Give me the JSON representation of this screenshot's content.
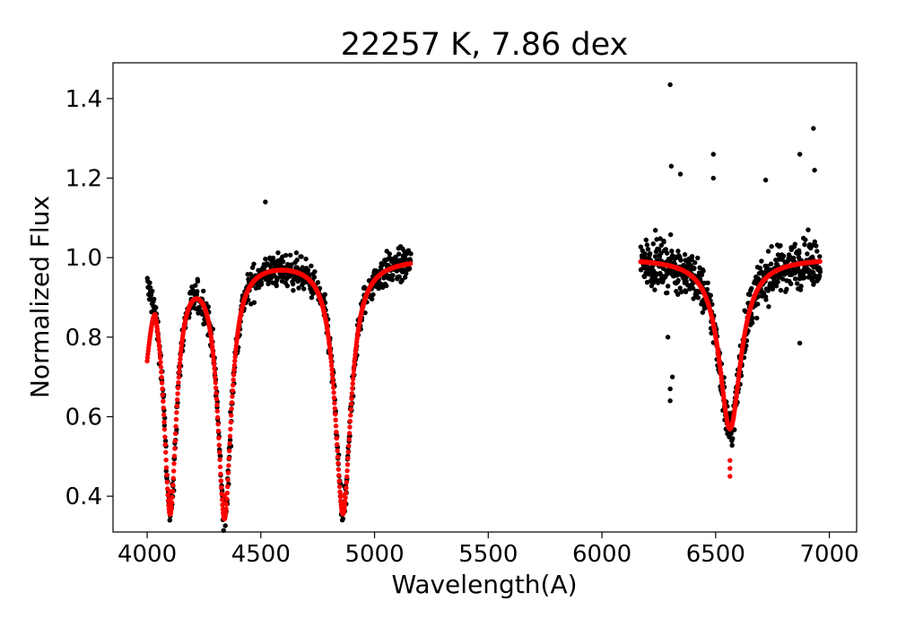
{
  "chart_data": {
    "type": "scatter",
    "title": "22257 K, 7.86 dex",
    "xlabel": "Wavelength(A)",
    "ylabel": "Normalized Flux",
    "xlim": [
      3850,
      7120
    ],
    "ylim": [
      0.31,
      1.49
    ],
    "xticks": [
      "4000",
      "4500",
      "5000",
      "5500",
      "6000",
      "6500",
      "7000"
    ],
    "yticks": [
      "0.4",
      "0.6",
      "0.8",
      "1.0",
      "1.2",
      "1.4"
    ],
    "grid": false,
    "legend": "none",
    "colors": {
      "observed": "#000000",
      "model": "#ff0000"
    },
    "series": [
      {
        "kind": "observed",
        "segments": [
          [
            4000,
            5160
          ],
          [
            6170,
            6960
          ]
        ],
        "continuum": 1.0,
        "noise_sigma": 0.04,
        "notable_points": [
          {
            "x": 6300,
            "y": 1.435
          },
          {
            "x": 6305,
            "y": 1.23
          },
          {
            "x": 6345,
            "y": 1.21
          },
          {
            "x": 6490,
            "y": 1.26
          },
          {
            "x": 6490,
            "y": 1.2
          },
          {
            "x": 6720,
            "y": 1.195
          },
          {
            "x": 6870,
            "y": 1.26
          },
          {
            "x": 6930,
            "y": 1.325
          },
          {
            "x": 6935,
            "y": 1.22
          },
          {
            "x": 4520,
            "y": 1.14
          },
          {
            "x": 6300,
            "y": 0.64
          },
          {
            "x": 6300,
            "y": 0.67
          },
          {
            "x": 6310,
            "y": 0.7
          },
          {
            "x": 6290,
            "y": 0.8
          },
          {
            "x": 6870,
            "y": 0.785
          }
        ]
      },
      {
        "kind": "model",
        "segments": [
          [
            4000,
            5160
          ],
          [
            6170,
            6960
          ]
        ],
        "continuum_start": 0.74,
        "lines": [
          {
            "center": 4101,
            "depth": 0.63,
            "width": 34,
            "core_min": 0.372
          },
          {
            "center": 4340,
            "depth": 0.64,
            "width": 36,
            "core_min": 0.362
          },
          {
            "center": 4861,
            "depth": 0.64,
            "width": 42,
            "core_min": 0.362
          },
          {
            "center": 6563,
            "depth": 0.43,
            "width": 58,
            "core_min": 0.45
          }
        ]
      }
    ]
  }
}
